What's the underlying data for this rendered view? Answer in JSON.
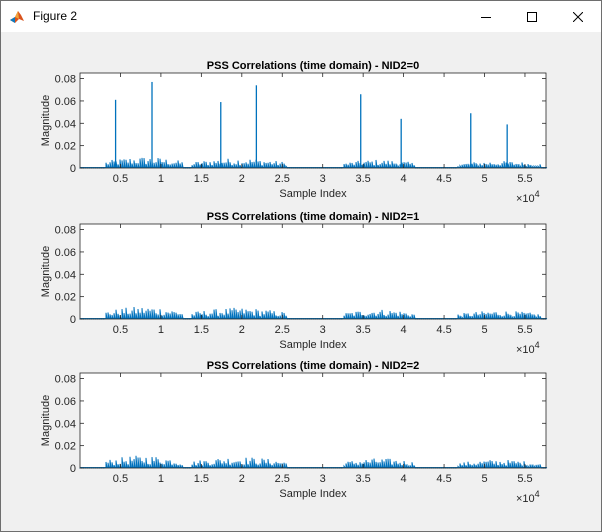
{
  "window": {
    "title": "Figure 2",
    "buttons": {
      "minimize": "minimize",
      "maximize": "maximize",
      "close": "close"
    }
  },
  "colors": {
    "series": "#0072bd",
    "axes": "#262626",
    "background": "#f0f0f0",
    "axes_bg": "#ffffff"
  },
  "chart_data": [
    {
      "type": "line",
      "title": "PSS Correlations (time domain) - NID2=0",
      "xlabel": "Sample Index",
      "ylabel": "Magnitude",
      "x_exponent": "×10",
      "x_exponent_power": "4",
      "xlim": [
        0,
        57600
      ],
      "ylim": [
        0,
        0.085
      ],
      "xticks": [
        5000,
        10000,
        15000,
        20000,
        25000,
        30000,
        35000,
        40000,
        45000,
        50000,
        55000
      ],
      "xtick_labels": [
        "0.5",
        "1",
        "1.5",
        "2",
        "2.5",
        "3",
        "3.5",
        "4",
        "4.5",
        "5",
        "5.5"
      ],
      "yticks": [
        0,
        0.02,
        0.04,
        0.06,
        0.08
      ],
      "ytick_labels": [
        "0",
        "0.02",
        "0.04",
        "0.06",
        "0.08"
      ],
      "noise_segments": [
        [
          3000,
          12800,
          0.008
        ],
        [
          13700,
          25500,
          0.007
        ],
        [
          32400,
          41500,
          0.006
        ],
        [
          46500,
          57000,
          0.005
        ]
      ],
      "peaks": [
        [
          4400,
          0.061
        ],
        [
          8900,
          0.077
        ],
        [
          17400,
          0.059
        ],
        [
          21800,
          0.074
        ],
        [
          34700,
          0.066
        ],
        [
          39700,
          0.044
        ],
        [
          48300,
          0.049
        ],
        [
          52800,
          0.039
        ]
      ]
    },
    {
      "type": "line",
      "title": "PSS Correlations (time domain) - NID2=1",
      "xlabel": "Sample Index",
      "ylabel": "Magnitude",
      "x_exponent": "×10",
      "x_exponent_power": "4",
      "xlim": [
        0,
        57600
      ],
      "ylim": [
        0,
        0.085
      ],
      "xticks": [
        5000,
        10000,
        15000,
        20000,
        25000,
        30000,
        35000,
        40000,
        45000,
        50000,
        55000
      ],
      "xtick_labels": [
        "0.5",
        "1",
        "1.5",
        "2",
        "2.5",
        "3",
        "3.5",
        "4",
        "4.5",
        "5",
        "5.5"
      ],
      "yticks": [
        0,
        0.02,
        0.04,
        0.06,
        0.08
      ],
      "ytick_labels": [
        "0",
        "0.02",
        "0.04",
        "0.06",
        "0.08"
      ],
      "noise_segments": [
        [
          3000,
          12800,
          0.009
        ],
        [
          13700,
          25500,
          0.008
        ],
        [
          32400,
          41500,
          0.007
        ],
        [
          46500,
          57000,
          0.006
        ]
      ],
      "peaks": []
    },
    {
      "type": "line",
      "title": "PSS Correlations (time domain) - NID2=2",
      "xlabel": "Sample Index",
      "ylabel": "Magnitude",
      "x_exponent": "×10",
      "x_exponent_power": "4",
      "xlim": [
        0,
        57600
      ],
      "ylim": [
        0,
        0.085
      ],
      "xticks": [
        5000,
        10000,
        15000,
        20000,
        25000,
        30000,
        35000,
        40000,
        45000,
        50000,
        55000
      ],
      "xtick_labels": [
        "0.5",
        "1",
        "1.5",
        "2",
        "2.5",
        "3",
        "3.5",
        "4",
        "4.5",
        "5",
        "5.5"
      ],
      "yticks": [
        0,
        0.02,
        0.04,
        0.06,
        0.08
      ],
      "ytick_labels": [
        "0",
        "0.02",
        "0.04",
        "0.06",
        "0.08"
      ],
      "noise_segments": [
        [
          3000,
          12800,
          0.009
        ],
        [
          13700,
          25500,
          0.008
        ],
        [
          32400,
          41500,
          0.007
        ],
        [
          46500,
          57000,
          0.006
        ]
      ],
      "peaks": []
    }
  ]
}
